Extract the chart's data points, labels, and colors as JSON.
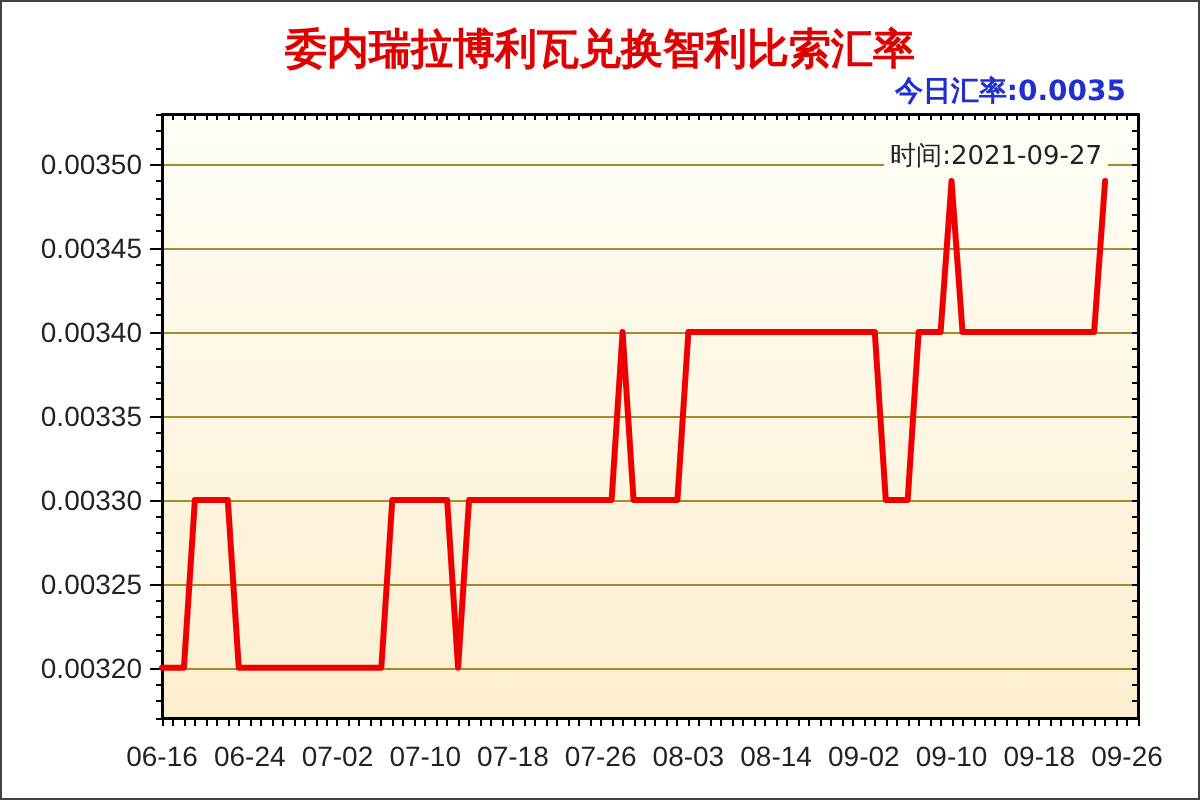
{
  "chart_data": {
    "type": "line",
    "title": "委内瑞拉博利瓦兑换智利比索汇率",
    "subtitle": "今日汇率:0.0035",
    "annotations": [
      "时间:2021-09-27"
    ],
    "categories": [
      "06-16",
      null,
      null,
      null,
      null,
      null,
      null,
      null,
      "06-24",
      null,
      null,
      null,
      null,
      null,
      null,
      null,
      "07-02",
      null,
      null,
      null,
      null,
      null,
      null,
      null,
      "07-10",
      null,
      null,
      null,
      null,
      null,
      null,
      null,
      "07-18",
      null,
      null,
      null,
      null,
      null,
      null,
      null,
      "07-26",
      null,
      null,
      null,
      null,
      null,
      null,
      null,
      "08-03",
      null,
      null,
      null,
      null,
      null,
      null,
      null,
      "08-14",
      null,
      null,
      null,
      null,
      null,
      null,
      null,
      "09-02",
      null,
      null,
      null,
      null,
      null,
      null,
      null,
      "09-10",
      null,
      null,
      null,
      null,
      null,
      null,
      null,
      "09-18",
      null,
      null,
      null,
      null,
      null,
      null,
      null,
      "09-26",
      null
    ],
    "series": [
      {
        "color": "#ee0000",
        "values": [
          0.0032,
          0.0032,
          0.0032,
          0.0033,
          0.0033,
          0.0033,
          0.0033,
          0.0032,
          0.0032,
          0.0032,
          0.0032,
          0.0032,
          0.0032,
          0.0032,
          0.0032,
          0.0032,
          0.0032,
          0.0032,
          0.0032,
          0.0032,
          0.0032,
          0.0033,
          0.0033,
          0.0033,
          0.0033,
          0.0033,
          0.0033,
          0.0032,
          0.0033,
          0.0033,
          0.0033,
          0.0033,
          0.0033,
          0.0033,
          0.0033,
          0.0033,
          0.0033,
          0.0033,
          0.0033,
          0.0033,
          0.0033,
          0.0033,
          0.0034,
          0.0033,
          0.0033,
          0.0033,
          0.0033,
          0.0033,
          0.0034,
          0.0034,
          0.0034,
          0.0034,
          0.0034,
          0.0034,
          0.0034,
          0.0034,
          0.0034,
          0.0034,
          0.0034,
          0.0034,
          0.0034,
          0.0034,
          0.0034,
          0.0034,
          0.0034,
          0.0034,
          0.0033,
          0.0033,
          0.0033,
          0.0034,
          0.0034,
          0.0034,
          0.00349,
          0.0034,
          0.0034,
          0.0034,
          0.0034,
          0.0034,
          0.0034,
          0.0034,
          0.0034,
          0.0034,
          0.0034,
          0.0034,
          0.0034,
          0.0034,
          0.00349,
          null,
          null,
          null
        ]
      }
    ],
    "ylim": [
      0.00317,
      0.00353
    ],
    "yticks": [
      {
        "value": 0.0032,
        "label": "0.00320"
      },
      0.00325,
      {
        "value": 0.0033,
        "label": "0.00330"
      },
      0.00335,
      {
        "value": 0.0034,
        "label": "0.00340"
      },
      0.00345,
      {
        "value": 0.0035,
        "label": "0.00350"
      }
    ],
    "grid": "y"
  }
}
